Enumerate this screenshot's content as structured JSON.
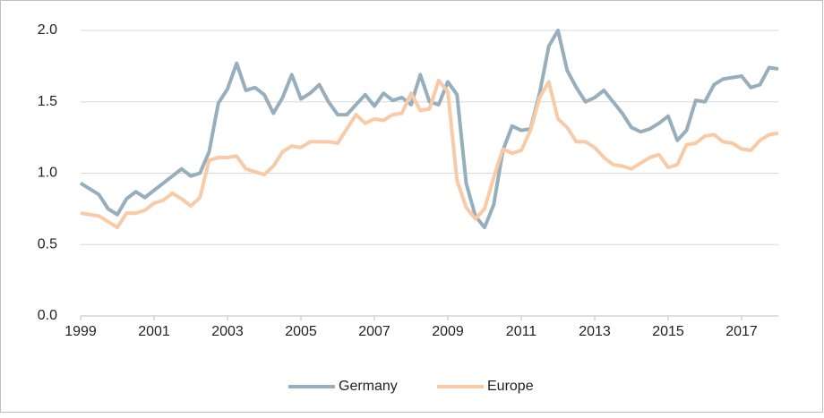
{
  "chart_data": {
    "type": "line",
    "x": [
      1999,
      1999.25,
      1999.5,
      1999.75,
      2000,
      2000.25,
      2000.5,
      2000.75,
      2001,
      2001.25,
      2001.5,
      2001.75,
      2002,
      2002.25,
      2002.5,
      2002.75,
      2003,
      2003.25,
      2003.5,
      2003.75,
      2004,
      2004.25,
      2004.5,
      2004.75,
      2005,
      2005.25,
      2005.5,
      2005.75,
      2006,
      2006.25,
      2006.5,
      2006.75,
      2007,
      2007.25,
      2007.5,
      2007.75,
      2008,
      2008.25,
      2008.5,
      2008.75,
      2009,
      2009.25,
      2009.5,
      2009.75,
      2010,
      2010.25,
      2010.5,
      2010.75,
      2011,
      2011.25,
      2011.5,
      2011.75,
      2012,
      2012.25,
      2012.5,
      2012.75,
      2013,
      2013.25,
      2013.5,
      2013.75,
      2014,
      2014.25,
      2014.5,
      2014.75,
      2015,
      2015.25,
      2015.5,
      2015.75,
      2016,
      2016.25,
      2016.5,
      2016.75,
      2017,
      2017.25,
      2017.5,
      2017.75,
      2018
    ],
    "series": [
      {
        "name": "Germany",
        "color": "#97aebd",
        "values": [
          0.93,
          0.89,
          0.85,
          0.75,
          0.71,
          0.82,
          0.87,
          0.83,
          0.88,
          0.93,
          0.98,
          1.03,
          0.98,
          1.0,
          1.15,
          1.49,
          1.59,
          1.77,
          1.58,
          1.6,
          1.55,
          1.42,
          1.53,
          1.69,
          1.52,
          1.56,
          1.62,
          1.5,
          1.41,
          1.41,
          1.48,
          1.55,
          1.47,
          1.56,
          1.51,
          1.53,
          1.48,
          1.69,
          1.5,
          1.48,
          1.64,
          1.55,
          0.93,
          0.7,
          0.62,
          0.78,
          1.16,
          1.33,
          1.3,
          1.31,
          1.56,
          1.89,
          2.0,
          1.72,
          1.6,
          1.5,
          1.53,
          1.58,
          1.5,
          1.42,
          1.32,
          1.29,
          1.31,
          1.35,
          1.4,
          1.23,
          1.3,
          1.51,
          1.5,
          1.62,
          1.66,
          1.67,
          1.68,
          1.6,
          1.62,
          1.74,
          1.73
        ]
      },
      {
        "name": "Europe",
        "color": "#f8cba6",
        "values": [
          0.72,
          0.71,
          0.7,
          0.66,
          0.62,
          0.72,
          0.72,
          0.74,
          0.79,
          0.81,
          0.86,
          0.82,
          0.77,
          0.83,
          1.09,
          1.11,
          1.11,
          1.12,
          1.03,
          1.01,
          0.99,
          1.05,
          1.15,
          1.19,
          1.18,
          1.22,
          1.22,
          1.22,
          1.21,
          1.31,
          1.41,
          1.35,
          1.38,
          1.37,
          1.41,
          1.42,
          1.56,
          1.44,
          1.45,
          1.65,
          1.57,
          0.95,
          0.76,
          0.68,
          0.75,
          0.97,
          1.17,
          1.14,
          1.16,
          1.3,
          1.53,
          1.64,
          1.38,
          1.32,
          1.22,
          1.22,
          1.18,
          1.11,
          1.06,
          1.05,
          1.03,
          1.07,
          1.11,
          1.13,
          1.04,
          1.06,
          1.2,
          1.21,
          1.26,
          1.27,
          1.22,
          1.21,
          1.17,
          1.16,
          1.23,
          1.27,
          1.28
        ]
      }
    ],
    "xlim": [
      1999,
      2018
    ],
    "xticks": [
      1999,
      2001,
      2003,
      2005,
      2007,
      2009,
      2011,
      2013,
      2015,
      2017
    ],
    "ylim": [
      0,
      2
    ],
    "yticks": [
      {
        "value": 0,
        "label": "0.0"
      },
      {
        "value": 0.5,
        "label": "0.5"
      },
      {
        "value": 1,
        "label": "1.0"
      },
      {
        "value": 1.5,
        "label": "1.5"
      },
      {
        "value": 2,
        "label": "2.0"
      }
    ],
    "grid": true,
    "legend": "bottom"
  }
}
